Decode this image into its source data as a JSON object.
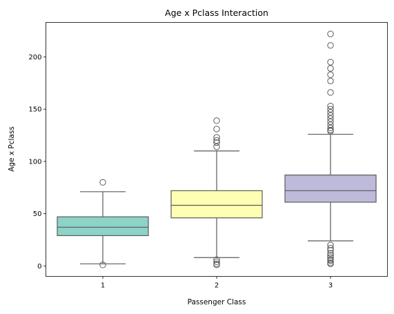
{
  "chart_data": {
    "type": "box",
    "title": "Age x Pclass Interaction",
    "xlabel": "Passenger Class",
    "ylabel": "Age x Pclass",
    "ylim": [
      -10,
      233
    ],
    "yticks": [
      0,
      50,
      100,
      150,
      200
    ],
    "categories": [
      "1",
      "2",
      "3"
    ],
    "grid": false,
    "boxes": [
      {
        "category": "1",
        "color": "#8dd3c7",
        "q1": 29,
        "median": 37,
        "q3": 47,
        "whisker_low": 2,
        "whisker_high": 71,
        "outliers": [
          80,
          1
        ]
      },
      {
        "category": "2",
        "color": "#ffffb3",
        "q1": 46,
        "median": 58,
        "q3": 72,
        "whisker_low": 8,
        "whisker_high": 110,
        "outliers": [
          139,
          131,
          123,
          120,
          118,
          114,
          6,
          4,
          2,
          1
        ]
      },
      {
        "category": "3",
        "color": "#bebada",
        "q1": 61,
        "median": 72,
        "q3": 87,
        "whisker_low": 24,
        "whisker_high": 126,
        "outliers": [
          222,
          211,
          195,
          189,
          183,
          177,
          166,
          153,
          150,
          147,
          144,
          141,
          138,
          135,
          132,
          130,
          129,
          20,
          17,
          15,
          12,
          10,
          8,
          6,
          5,
          3,
          2
        ]
      }
    ],
    "colors": {
      "box_edge": "#5a5a5a",
      "axis": "#000000",
      "outlier_edge": "#5a5a5a"
    }
  }
}
